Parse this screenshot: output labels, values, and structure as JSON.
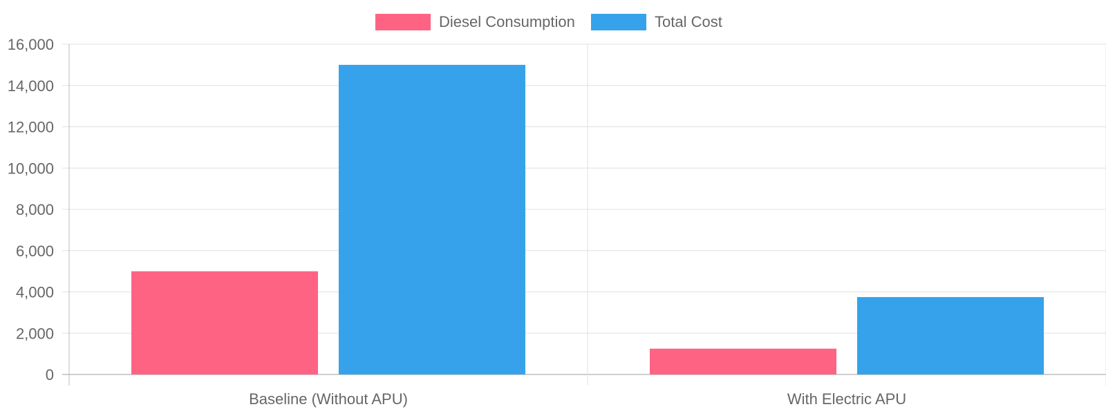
{
  "chart_data": {
    "type": "bar",
    "title": "",
    "xlabel": "",
    "ylabel": "",
    "categories": [
      "Baseline (Without APU)",
      "With Electric APU"
    ],
    "series": [
      {
        "name": "Diesel Consumption",
        "values": [
          5000,
          1250
        ],
        "color": "#FF6384"
      },
      {
        "name": "Total Cost",
        "values": [
          15000,
          3750
        ],
        "color": "#36A2EB"
      }
    ],
    "ylim": [
      0,
      16000
    ],
    "yticks": [
      "0",
      "2,000",
      "4,000",
      "6,000",
      "8,000",
      "10,000",
      "12,000",
      "14,000",
      "16,000"
    ],
    "grid": true,
    "legend_position": "top-center",
    "colors": {
      "grid": "#e0e0e0",
      "axis": "#bdbdbd",
      "text": "#666666"
    }
  }
}
